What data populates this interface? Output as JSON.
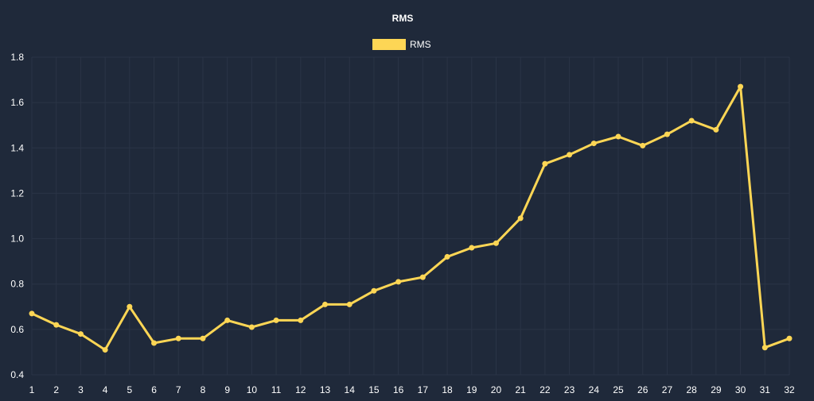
{
  "chart_data": {
    "type": "line",
    "title": "RMS",
    "xlabel": "",
    "ylabel": "",
    "legend": {
      "position": "top-center",
      "entries": [
        "RMS"
      ]
    },
    "grid": true,
    "colors": {
      "background": "#1f293a",
      "series": "#fdd655",
      "grid": "#2a3446",
      "text": "#ffffff"
    },
    "ylim": [
      0.4,
      1.8
    ],
    "yticks": [
      0.4,
      0.6,
      0.8,
      1.0,
      1.2,
      1.4,
      1.6,
      1.8
    ],
    "ytick_labels": [
      "0.4",
      "0.6",
      "0.8",
      "1.0",
      "1.2",
      "1.4",
      "1.6",
      "1.8"
    ],
    "categories": [
      "1",
      "2",
      "3",
      "4",
      "5",
      "6",
      "7",
      "8",
      "9",
      "10",
      "11",
      "12",
      "13",
      "14",
      "15",
      "16",
      "17",
      "18",
      "19",
      "20",
      "21",
      "22",
      "23",
      "24",
      "25",
      "26",
      "27",
      "28",
      "29",
      "30",
      "31",
      "32"
    ],
    "series": [
      {
        "name": "RMS",
        "values": [
          0.67,
          0.62,
          0.58,
          0.51,
          0.7,
          0.54,
          0.56,
          0.56,
          0.64,
          0.61,
          0.64,
          0.64,
          0.71,
          0.71,
          0.77,
          0.81,
          0.83,
          0.92,
          0.96,
          0.98,
          1.09,
          1.33,
          1.37,
          1.42,
          1.45,
          1.41,
          1.46,
          1.52,
          1.48,
          1.67,
          0.52,
          0.56
        ]
      }
    ]
  }
}
